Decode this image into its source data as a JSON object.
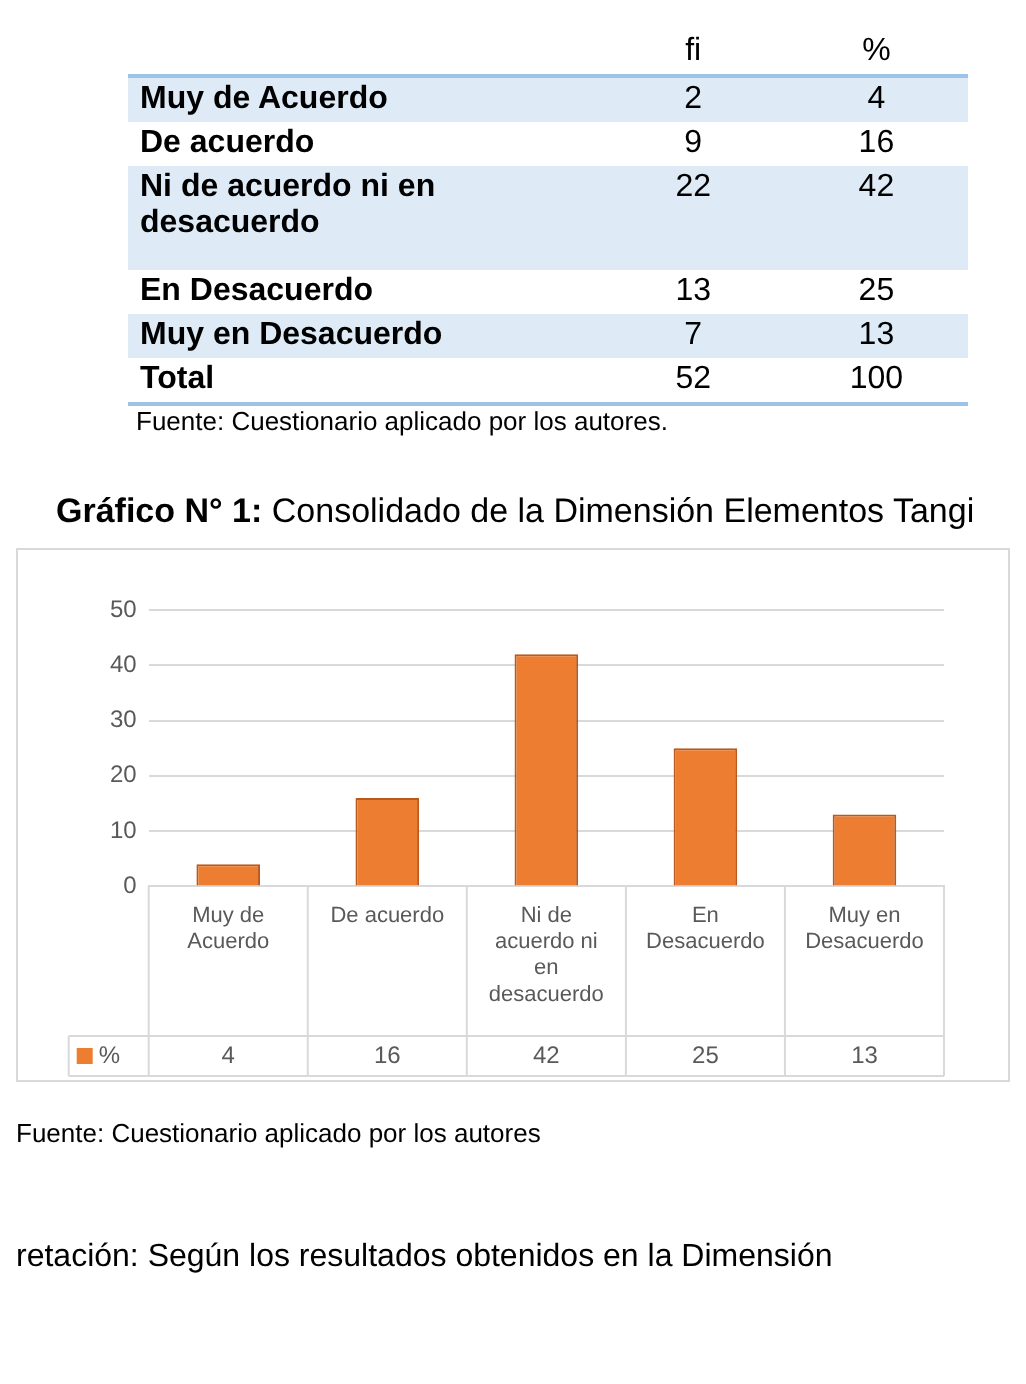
{
  "chart_data": [
    {
      "type": "other",
      "categories": [
        "Muy de Acuerdo",
        "De acuerdo",
        "Ni de acuerdo ni en desacuerdo",
        "En Desacuerdo",
        "Muy en Desacuerdo",
        "Total"
      ],
      "series": [
        {
          "name": "fi",
          "colors": [
            "#deebf7",
            "#ffffff",
            "#deebf7",
            "#ffffff",
            "#deebf7",
            "#ffffff"
          ],
          "values": [
            2,
            9,
            22,
            13,
            7,
            52
          ]
        },
        {
          "name": "%",
          "colors": [
            "#deebf7",
            "#ffffff",
            "#deebf7",
            "#ffffff",
            "#deebf7",
            "#ffffff"
          ],
          "values": [
            4,
            16,
            42,
            25,
            13,
            100
          ]
        }
      ],
      "data_labels": true,
      "annotations": [
        "Fuente: Cuestionario aplicado por los autores."
      ]
    },
    {
      "type": "bar",
      "title": "Gráfico N° 1: Consolidado de la Dimensión Elementos Tangi",
      "categories": [
        "Muy de Acuerdo",
        "De acuerdo",
        "Ni de acuerdo ni en desacuerdo",
        "En Desacuerdo",
        "Muy en Desacuerdo"
      ],
      "series": [
        {
          "name": "%",
          "color": "#ed7d31",
          "values": [
            4,
            16,
            42,
            25,
            13
          ]
        }
      ],
      "ylim": [
        0,
        50
      ],
      "yticks": [
        0,
        10,
        20,
        30,
        40,
        50
      ],
      "grid": "y",
      "legend": "bottom",
      "data_labels": true,
      "annotations": [
        "Fuente: Cuestionario aplicado por los autores",
        "retación: Según los resultados obtenidos en la Dimensión"
      ]
    }
  ]
}
